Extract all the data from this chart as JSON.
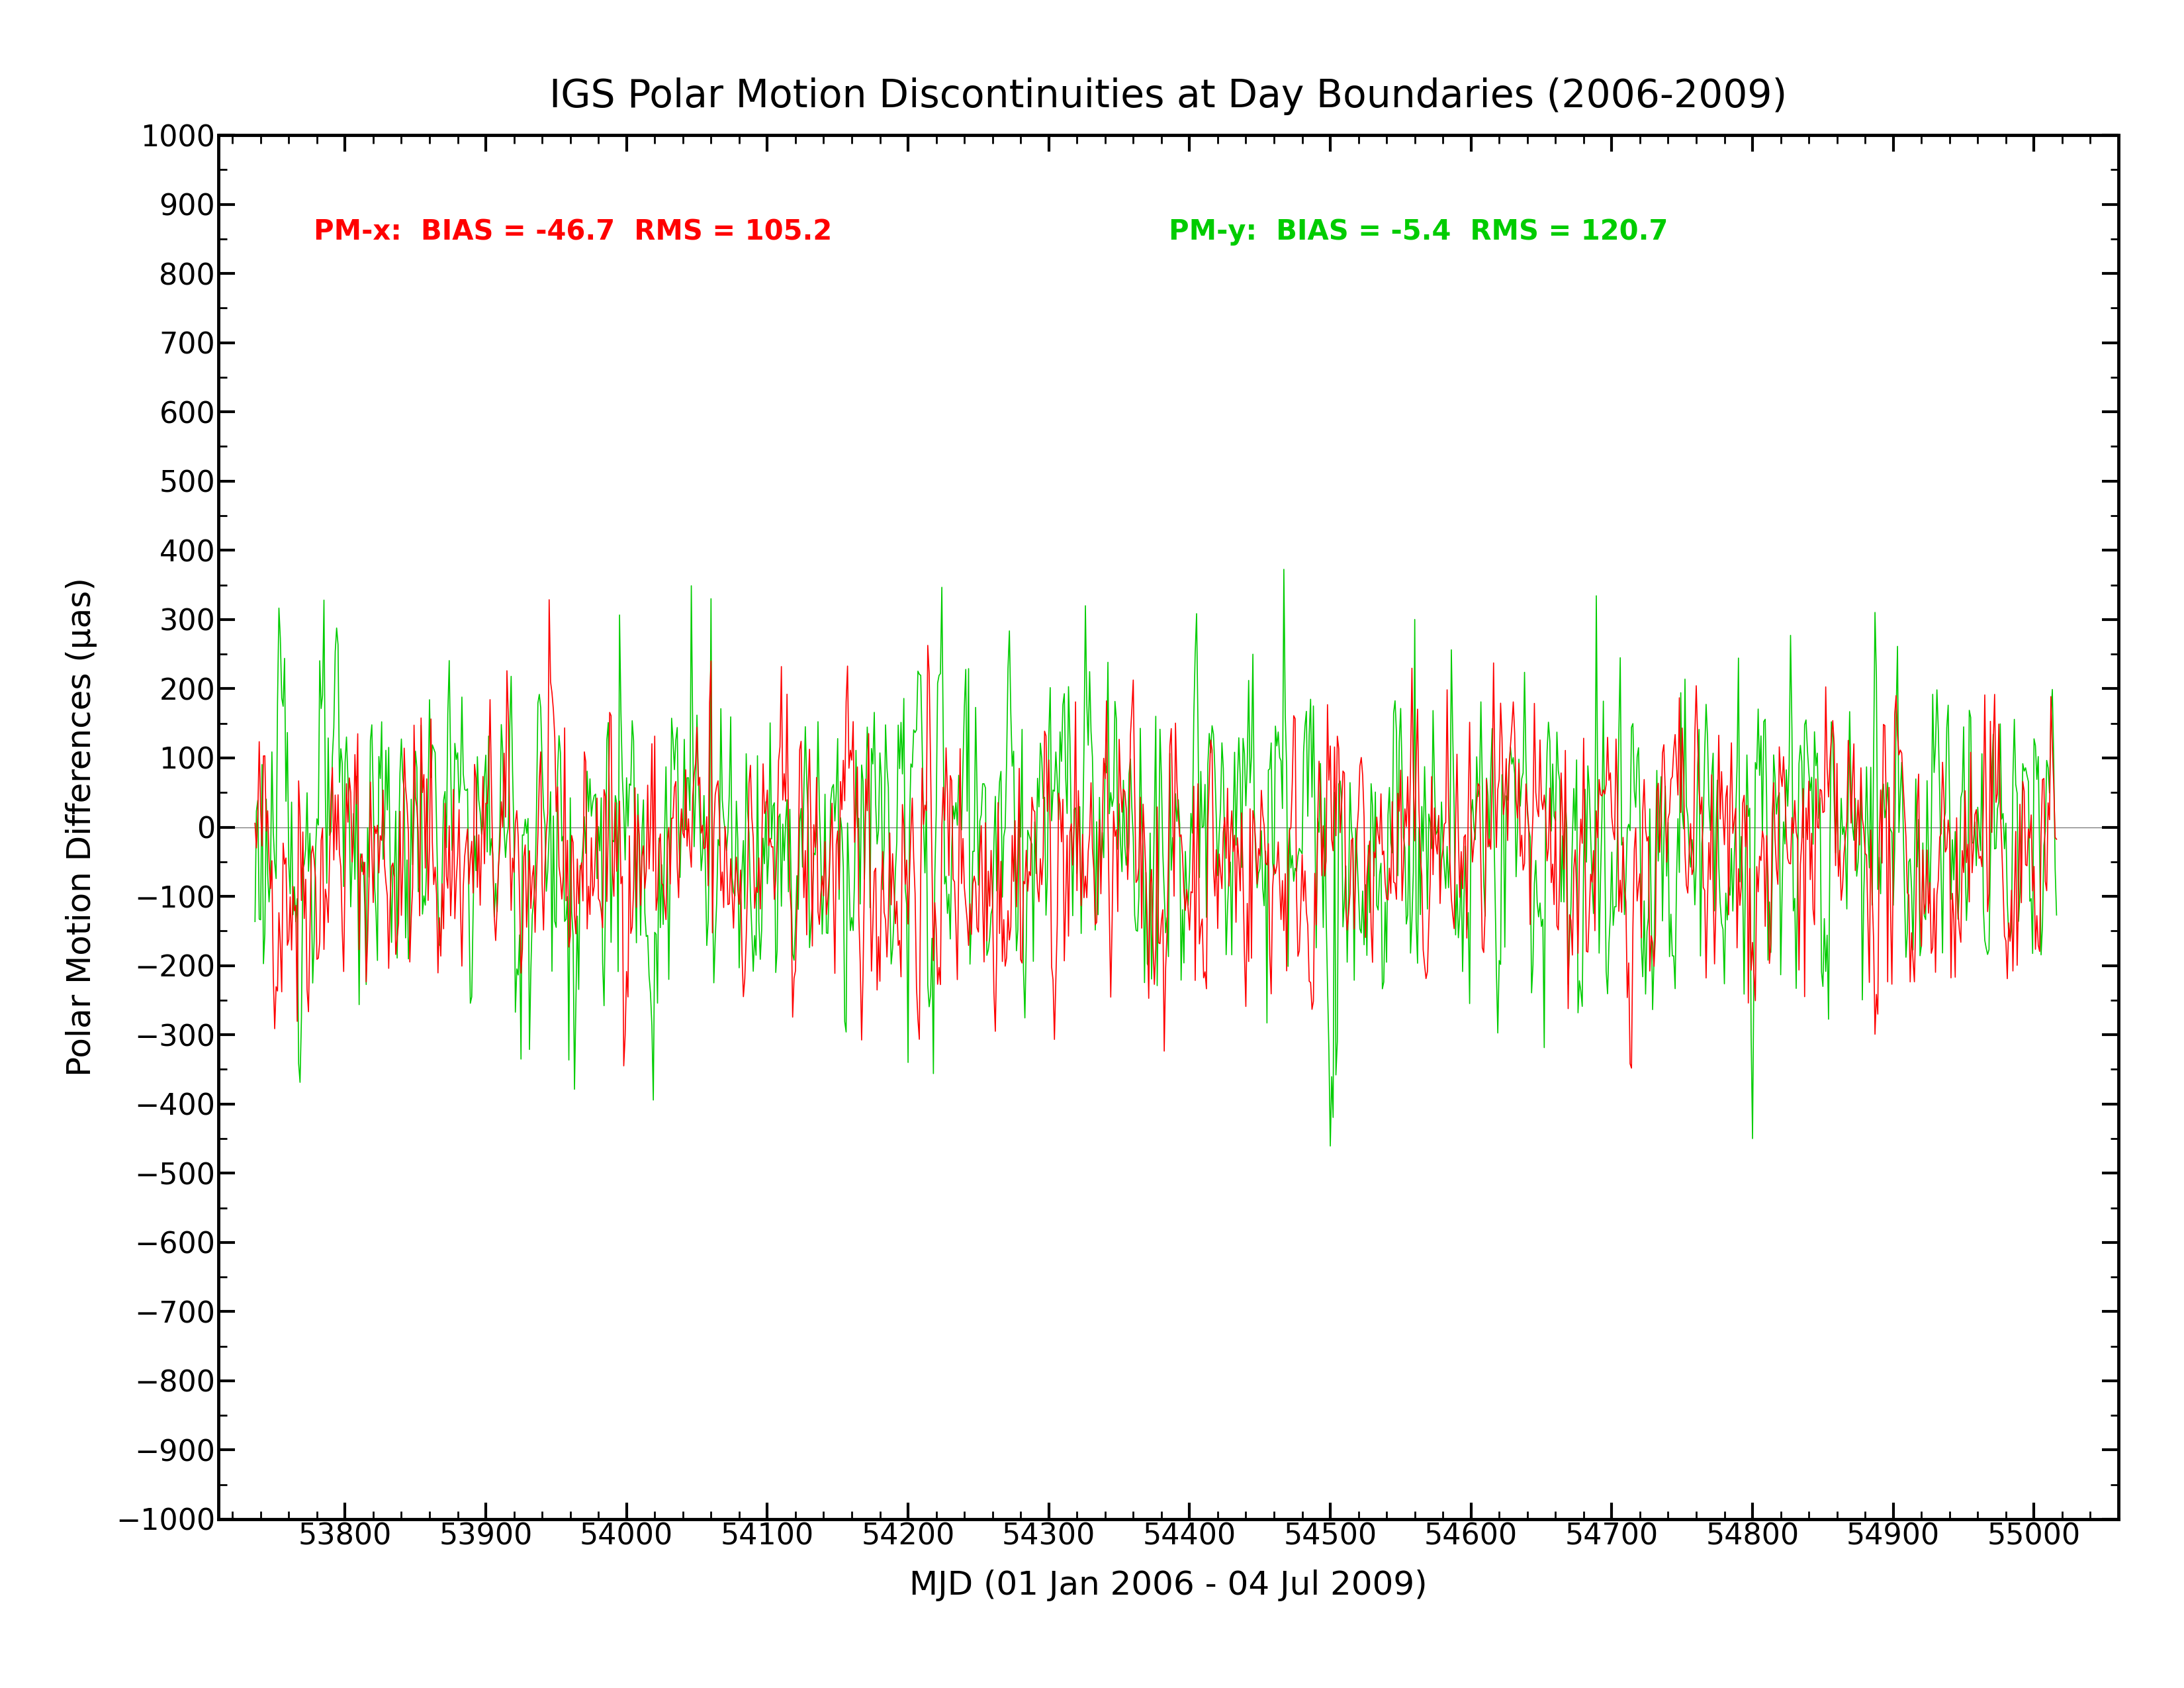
{
  "title": "IGS Polar Motion Discontinuities at Day Boundaries (2006-2009)",
  "xlabel": "MJD (01 Jan 2006 - 04 Jul 2009)",
  "ylabel": "Polar Motion Differences (μas)",
  "pmx_label": "PM-x:  BIAS = -46.7  RMS = 105.2",
  "pmy_label": "PM-y:  BIAS = -5.4  RMS = 120.7",
  "pmx_color": "#FF0000",
  "pmy_color": "#00CC00",
  "xlim": [
    53710,
    55060
  ],
  "ylim": [
    -1000,
    1000
  ],
  "xticks": [
    53800,
    53900,
    54000,
    54100,
    54200,
    54300,
    54400,
    54500,
    54600,
    54700,
    54800,
    54900,
    55000
  ],
  "yticks": [
    -1000,
    -900,
    -800,
    -700,
    -600,
    -500,
    -400,
    -300,
    -200,
    -100,
    0,
    100,
    200,
    300,
    400,
    500,
    600,
    700,
    800,
    900,
    1000
  ],
  "mjd_start": 53736,
  "mjd_end": 55016,
  "pmx_bias": -46.7,
  "pmx_rms": 105.2,
  "pmy_bias": -5.4,
  "pmy_rms": 120.7,
  "background_color": "#FFFFFF",
  "title_fontsize": 42,
  "label_fontsize": 36,
  "tick_fontsize": 32,
  "annotation_fontsize": 30,
  "seed_pmx": 42,
  "seed_pmy": 123
}
